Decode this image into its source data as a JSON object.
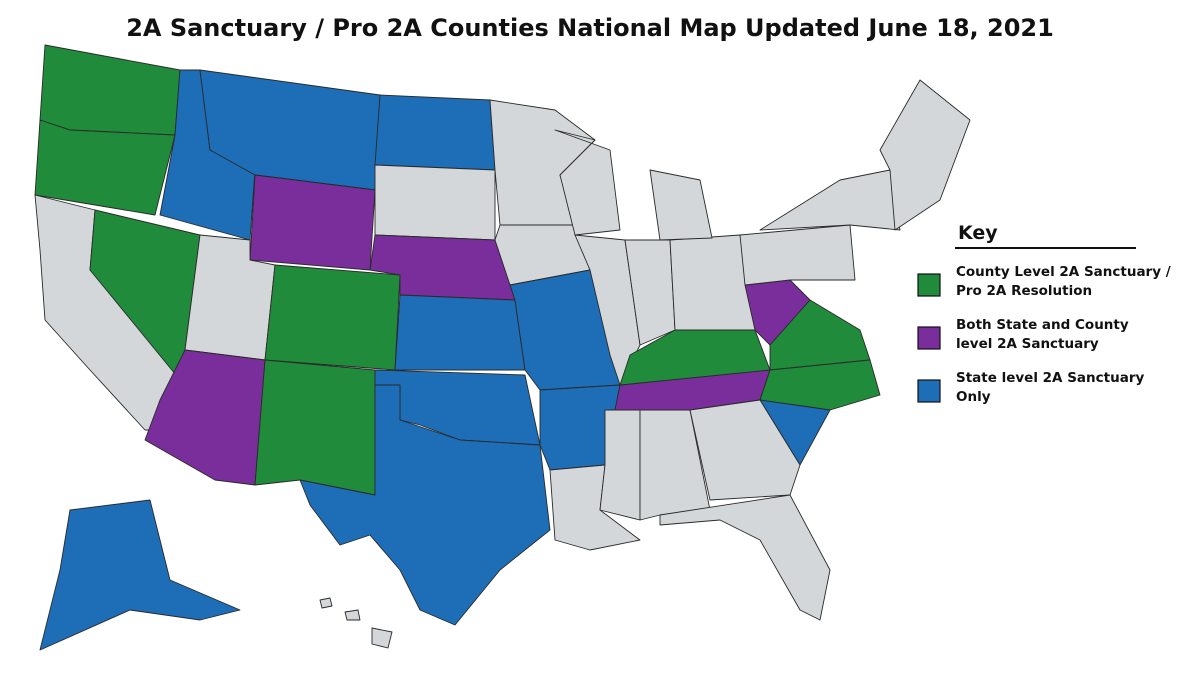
{
  "title": "2A Sanctuary / Pro 2A Counties National Map Updated June 18, 2021",
  "key": {
    "title": "Key",
    "items": [
      {
        "lines": [
          "County Level 2A Sanctuary /",
          "Pro 2A Resolution"
        ],
        "color": "#1f8b3b"
      },
      {
        "lines": [
          "Both State and County",
          "level 2A Sanctuary"
        ],
        "color": "#7a2e9c"
      },
      {
        "lines": [
          "State level 2A Sanctuary",
          "Only"
        ],
        "color": "#1d6db7"
      }
    ]
  }
}
